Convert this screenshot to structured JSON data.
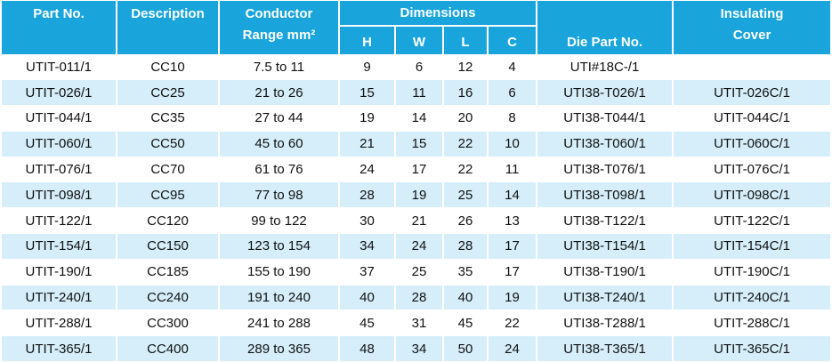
{
  "header": {
    "part_no": "Part No.",
    "description": "Description",
    "conductor": [
      "Conductor",
      "Range mm²"
    ],
    "dimensions": "Dimensions",
    "dimension_cols": [
      "H",
      "W",
      "L",
      "C"
    ],
    "die_part_no": "Die Part No.",
    "insulating_cover": [
      "Insulating",
      "Cover"
    ]
  },
  "rows": [
    [
      "UTIT-011/1",
      "CC10",
      "7.5 to 11",
      9,
      6,
      12,
      4,
      "UTI#18C-/1",
      null
    ],
    [
      "UTIT-026/1",
      "CC25",
      "21 to 26",
      15,
      11,
      16,
      6,
      "UTI38-T026/1",
      "UTIT-026C/1"
    ],
    [
      "UTIT-044/1",
      "CC35",
      "27 to 44",
      19,
      14,
      20,
      8,
      "UTI38-T044/1",
      "UTIT-044C/1"
    ],
    [
      "UTIT-060/1",
      "CC50",
      "45 to 60",
      21,
      15,
      22,
      10,
      "UTI38-T060/1",
      "UTIT-060C/1"
    ],
    [
      "UTIT-076/1",
      "CC70",
      "61 to 76",
      24,
      17,
      22,
      11,
      "UTI38-T076/1",
      "UTIT-076C/1"
    ],
    [
      "UTIT-098/1",
      "CC95",
      "77 to 98",
      28,
      19,
      25,
      14,
      "UTI38-T098/1",
      "UTIT-098C/1"
    ],
    [
      "UTIT-122/1",
      "CC120",
      "99 to 122",
      30,
      21,
      26,
      13,
      "UTI38-T122/1",
      "UTIT-122C/1"
    ],
    [
      "UTIT-154/1",
      "CC150",
      "123 to 154",
      34,
      24,
      28,
      17,
      "UTI38-T154/1",
      "UTIT-154C/1"
    ],
    [
      "UTIT-190/1",
      "CC185",
      "155 to 190",
      37,
      25,
      35,
      17,
      "UTI38-T190/1",
      "UTIT-190C/1"
    ],
    [
      "UTIT-240/1",
      "CC240",
      "191 to 240",
      40,
      28,
      40,
      19,
      "UTI38-T240/1",
      "UTIT-240C/1"
    ],
    [
      "UTIT-288/1",
      "CC300",
      "241 to 288",
      45,
      31,
      45,
      22,
      "UTI38-T288/1",
      "UTIT-288C/1"
    ],
    [
      "UTIT-365/1",
      "CC400",
      "289 to 365",
      48,
      34,
      50,
      24,
      "UTI38-T365/1",
      "UTIT-365C/1"
    ]
  ]
}
